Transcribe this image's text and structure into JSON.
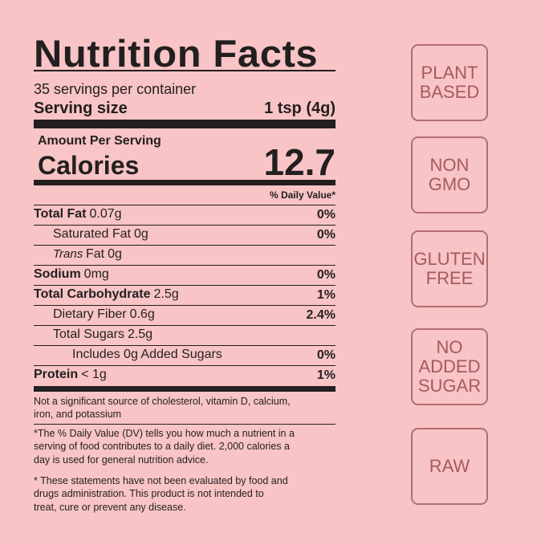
{
  "label": {
    "title": "Nutrition Facts",
    "servings": "35 servings per container",
    "serving_size_label": "Serving size",
    "serving_size_value": "1 tsp (4g)",
    "amount_per_serving": "Amount Per Serving",
    "calories_label": "Calories",
    "calories_value": "12.7",
    "daily_value_header": "% Daily Value*",
    "rows": [
      {
        "name": "Total Fat",
        "amount": "0.07g",
        "dv": "0%",
        "bold": true,
        "indent": 0
      },
      {
        "name": "Saturated Fat",
        "amount": "0g",
        "dv": "0%",
        "bold": false,
        "indent": 1
      },
      {
        "prefix": "Trans",
        "name": "Fat",
        "amount": "0g",
        "bold": false,
        "indent": 1
      },
      {
        "name": "Sodium",
        "amount": "0mg",
        "dv": "0%",
        "bold": true,
        "indent": 0
      },
      {
        "name": "Total Carbohydrate",
        "amount": "2.5g",
        "dv": "1%",
        "bold": true,
        "indent": 0
      },
      {
        "name": "Dietary Fiber",
        "amount": "0.6g",
        "dv": "2.4%",
        "bold": false,
        "indent": 1
      },
      {
        "name": "Total Sugars",
        "amount": "2.5g",
        "bold": false,
        "indent": 1
      },
      {
        "name": "Includes 0g Added Sugars",
        "dv": "0%",
        "bold": false,
        "indent": 2
      },
      {
        "name": "Protein",
        "amount": "< 1g",
        "dv": "1%",
        "bold": true,
        "indent": 0
      }
    ],
    "footnotes": [
      [
        "Not a significant source of cholesterol, vitamin D, calcium,",
        "iron, and potassium"
      ],
      [
        "*The % Daily Value (DV) tells you how much a nutrient in a",
        "serving of food contributes to a daily diet. 2,000 calories a",
        "day is used for general nutrition advice."
      ],
      [
        "* These statements have not been evaluated by food and",
        "drugs administration. This product is not intended to",
        "treat, cure or prevent any disease."
      ]
    ]
  },
  "badges": [
    [
      "PLANT",
      "BASED"
    ],
    [
      "NON",
      "GMO"
    ],
    [
      "GLUTEN",
      "FREE"
    ],
    [
      "NO",
      "ADDED",
      "SUGAR"
    ],
    [
      "RAW"
    ]
  ]
}
